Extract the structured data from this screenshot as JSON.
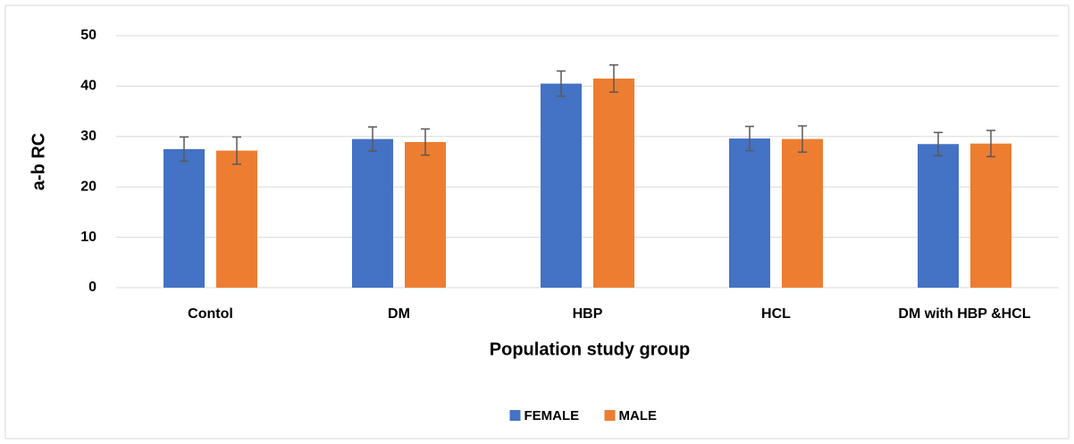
{
  "chart_data": {
    "type": "bar",
    "categories": [
      "Contol",
      "DM",
      "HBP",
      "HCL",
      "DM with HBP &HCL"
    ],
    "x_label": "Population study group",
    "y_label": "a-b RC",
    "series": [
      {
        "name": "FEMALE",
        "color": "#4472c4",
        "values": [
          27.5,
          29.5,
          40.5,
          29.6,
          28.5
        ],
        "errors": [
          2.4,
          2.4,
          2.5,
          2.4,
          2.3
        ]
      },
      {
        "name": "MALE",
        "color": "#ed7d31",
        "values": [
          27.2,
          28.9,
          41.5,
          29.5,
          28.6
        ],
        "errors": [
          2.7,
          2.6,
          2.7,
          2.6,
          2.6
        ]
      }
    ],
    "ylim": [
      0,
      50
    ],
    "yticks": [
      0,
      10,
      20,
      30,
      40,
      50
    ],
    "grid": true,
    "legend": "bottom"
  }
}
